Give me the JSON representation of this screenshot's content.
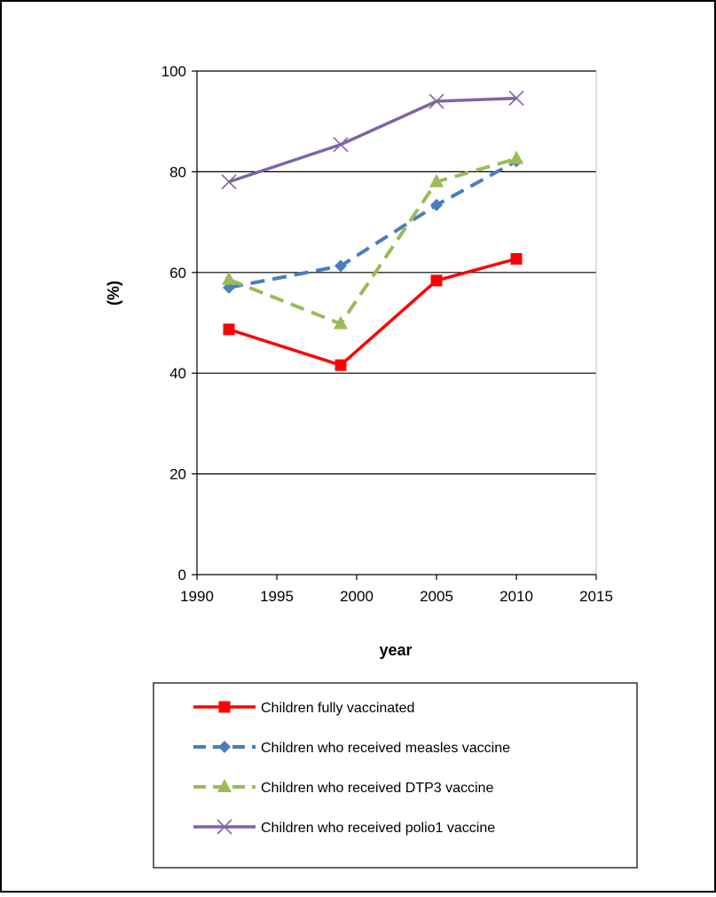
{
  "chart_data": {
    "type": "line",
    "xlabel": "year",
    "ylabel": "(%)",
    "xlim": [
      1990,
      2015
    ],
    "ylim": [
      0,
      100
    ],
    "xticks": [
      "1990",
      "1995",
      "2000",
      "2005",
      "2010",
      "2015"
    ],
    "yticks": [
      "0",
      "20",
      "40",
      "60",
      "80",
      "100"
    ],
    "grid": "horizontal",
    "legend_position": "bottom",
    "series": [
      {
        "name": "Children fully vaccinated",
        "color": "#ff0000",
        "dash": "solid",
        "marker": "square",
        "x": [
          1992,
          1999,
          2005,
          2010
        ],
        "y": [
          48.7,
          41.6,
          58.4,
          62.7
        ]
      },
      {
        "name": "Children who received measles vaccine",
        "color": "#4a7ebb",
        "dash": "dashed",
        "marker": "diamond",
        "x": [
          1992,
          1999,
          2005,
          2010
        ],
        "y": [
          57.0,
          61.3,
          73.4,
          82.1
        ]
      },
      {
        "name": "Children who received DTP3 vaccine",
        "color": "#9bbb59",
        "dash": "dashed",
        "marker": "triangle",
        "x": [
          1992,
          1999,
          2005,
          2010
        ],
        "y": [
          58.6,
          49.8,
          78.0,
          82.6
        ]
      },
      {
        "name": "Children who received polio1 vaccine",
        "color": "#8064a2",
        "dash": "solid",
        "marker": "cross",
        "x": [
          1992,
          1999,
          2005,
          2010
        ],
        "y": [
          78.0,
          85.4,
          94.0,
          94.6
        ]
      }
    ]
  }
}
